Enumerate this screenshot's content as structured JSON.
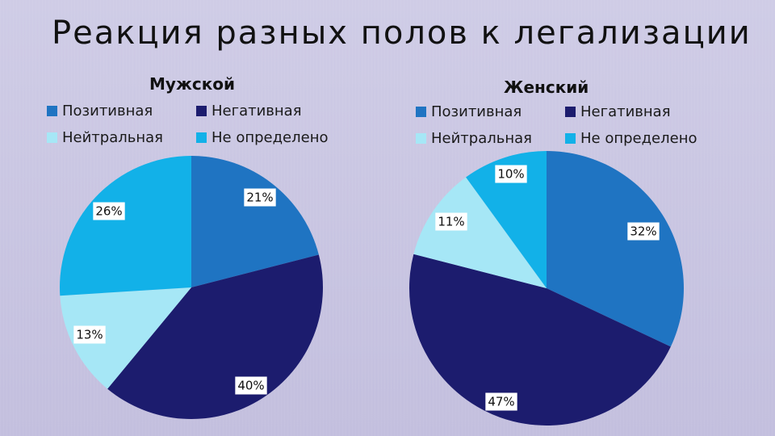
{
  "title": "Реакция разных полов к легализации",
  "colors": {
    "positive": "#1f74c2",
    "negative": "#1c1c6e",
    "neutral": "#a6e7f6",
    "undefined": "#12b1e8"
  },
  "chart_data": [
    {
      "type": "pie",
      "title": "Мужской",
      "legend_position": "top",
      "categories": [
        "Позитивная",
        "Негативная",
        "Нейтральная",
        "Не определено"
      ],
      "values": [
        21,
        40,
        13,
        26
      ],
      "labels": [
        "21%",
        "40%",
        "13%",
        "26%"
      ]
    },
    {
      "type": "pie",
      "title": "Женский",
      "legend_position": "top",
      "categories": [
        "Позитивная",
        "Негативная",
        "Нейтральная",
        "Не определено"
      ],
      "values": [
        32,
        47,
        11,
        10
      ],
      "labels": [
        "32%",
        "47%",
        "11%",
        "10%"
      ]
    }
  ]
}
